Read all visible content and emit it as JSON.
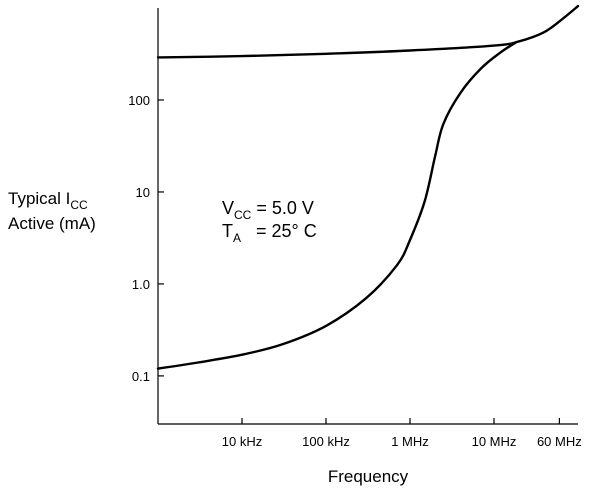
{
  "chart_data": {
    "type": "line",
    "xscale": "log",
    "yscale": "log",
    "xlabel": "Frequency",
    "ylabel": {
      "line1_prefix": "Typical I",
      "line1_subscript": "CC",
      "line2": "Active (mA)"
    },
    "xlim": [
      1000,
      100000000
    ],
    "ylim": [
      0.03,
      1000
    ],
    "x_ticks": [
      {
        "value": 10000,
        "label": "10 kHz"
      },
      {
        "value": 100000,
        "label": "100 kHz"
      },
      {
        "value": 1000000,
        "label": "1 MHz"
      },
      {
        "value": 10000000,
        "label": "10 MHz"
      },
      {
        "value": 60000000,
        "label": "60 MHz"
      }
    ],
    "y_ticks": [
      {
        "value": 0.1,
        "label": "0.1"
      },
      {
        "value": 1,
        "label": "1.0"
      },
      {
        "value": 10,
        "label": "10"
      },
      {
        "value": 100,
        "label": "100"
      }
    ],
    "annotations": [
      {
        "main": "V",
        "sub": "CC",
        "rest": " = 5.0 V"
      },
      {
        "main": "T",
        "sub": "A",
        "rest": "   = 25° C"
      }
    ],
    "grid": false,
    "series": [
      {
        "color": "#000000",
        "points": [
          [
            1000,
            290
          ],
          [
            10000,
            300
          ],
          [
            100000,
            318
          ],
          [
            1000000,
            345
          ],
          [
            10000000,
            390
          ],
          [
            20000000,
            435
          ],
          [
            40000000,
            550
          ],
          [
            70000000,
            800
          ],
          [
            100000000,
            1050
          ]
        ]
      },
      {
        "color": "#000000",
        "points": [
          [
            1000,
            0.12
          ],
          [
            3000,
            0.14
          ],
          [
            10000,
            0.17
          ],
          [
            30000,
            0.22
          ],
          [
            100000,
            0.35
          ],
          [
            300000,
            0.7
          ],
          [
            700000,
            1.6
          ],
          [
            1000000,
            3
          ],
          [
            1500000,
            8
          ],
          [
            2000000,
            25
          ],
          [
            2500000,
            55
          ],
          [
            4000000,
            120
          ],
          [
            7000000,
            220
          ],
          [
            12000000,
            330
          ],
          [
            18000000,
            420
          ]
        ]
      }
    ]
  }
}
